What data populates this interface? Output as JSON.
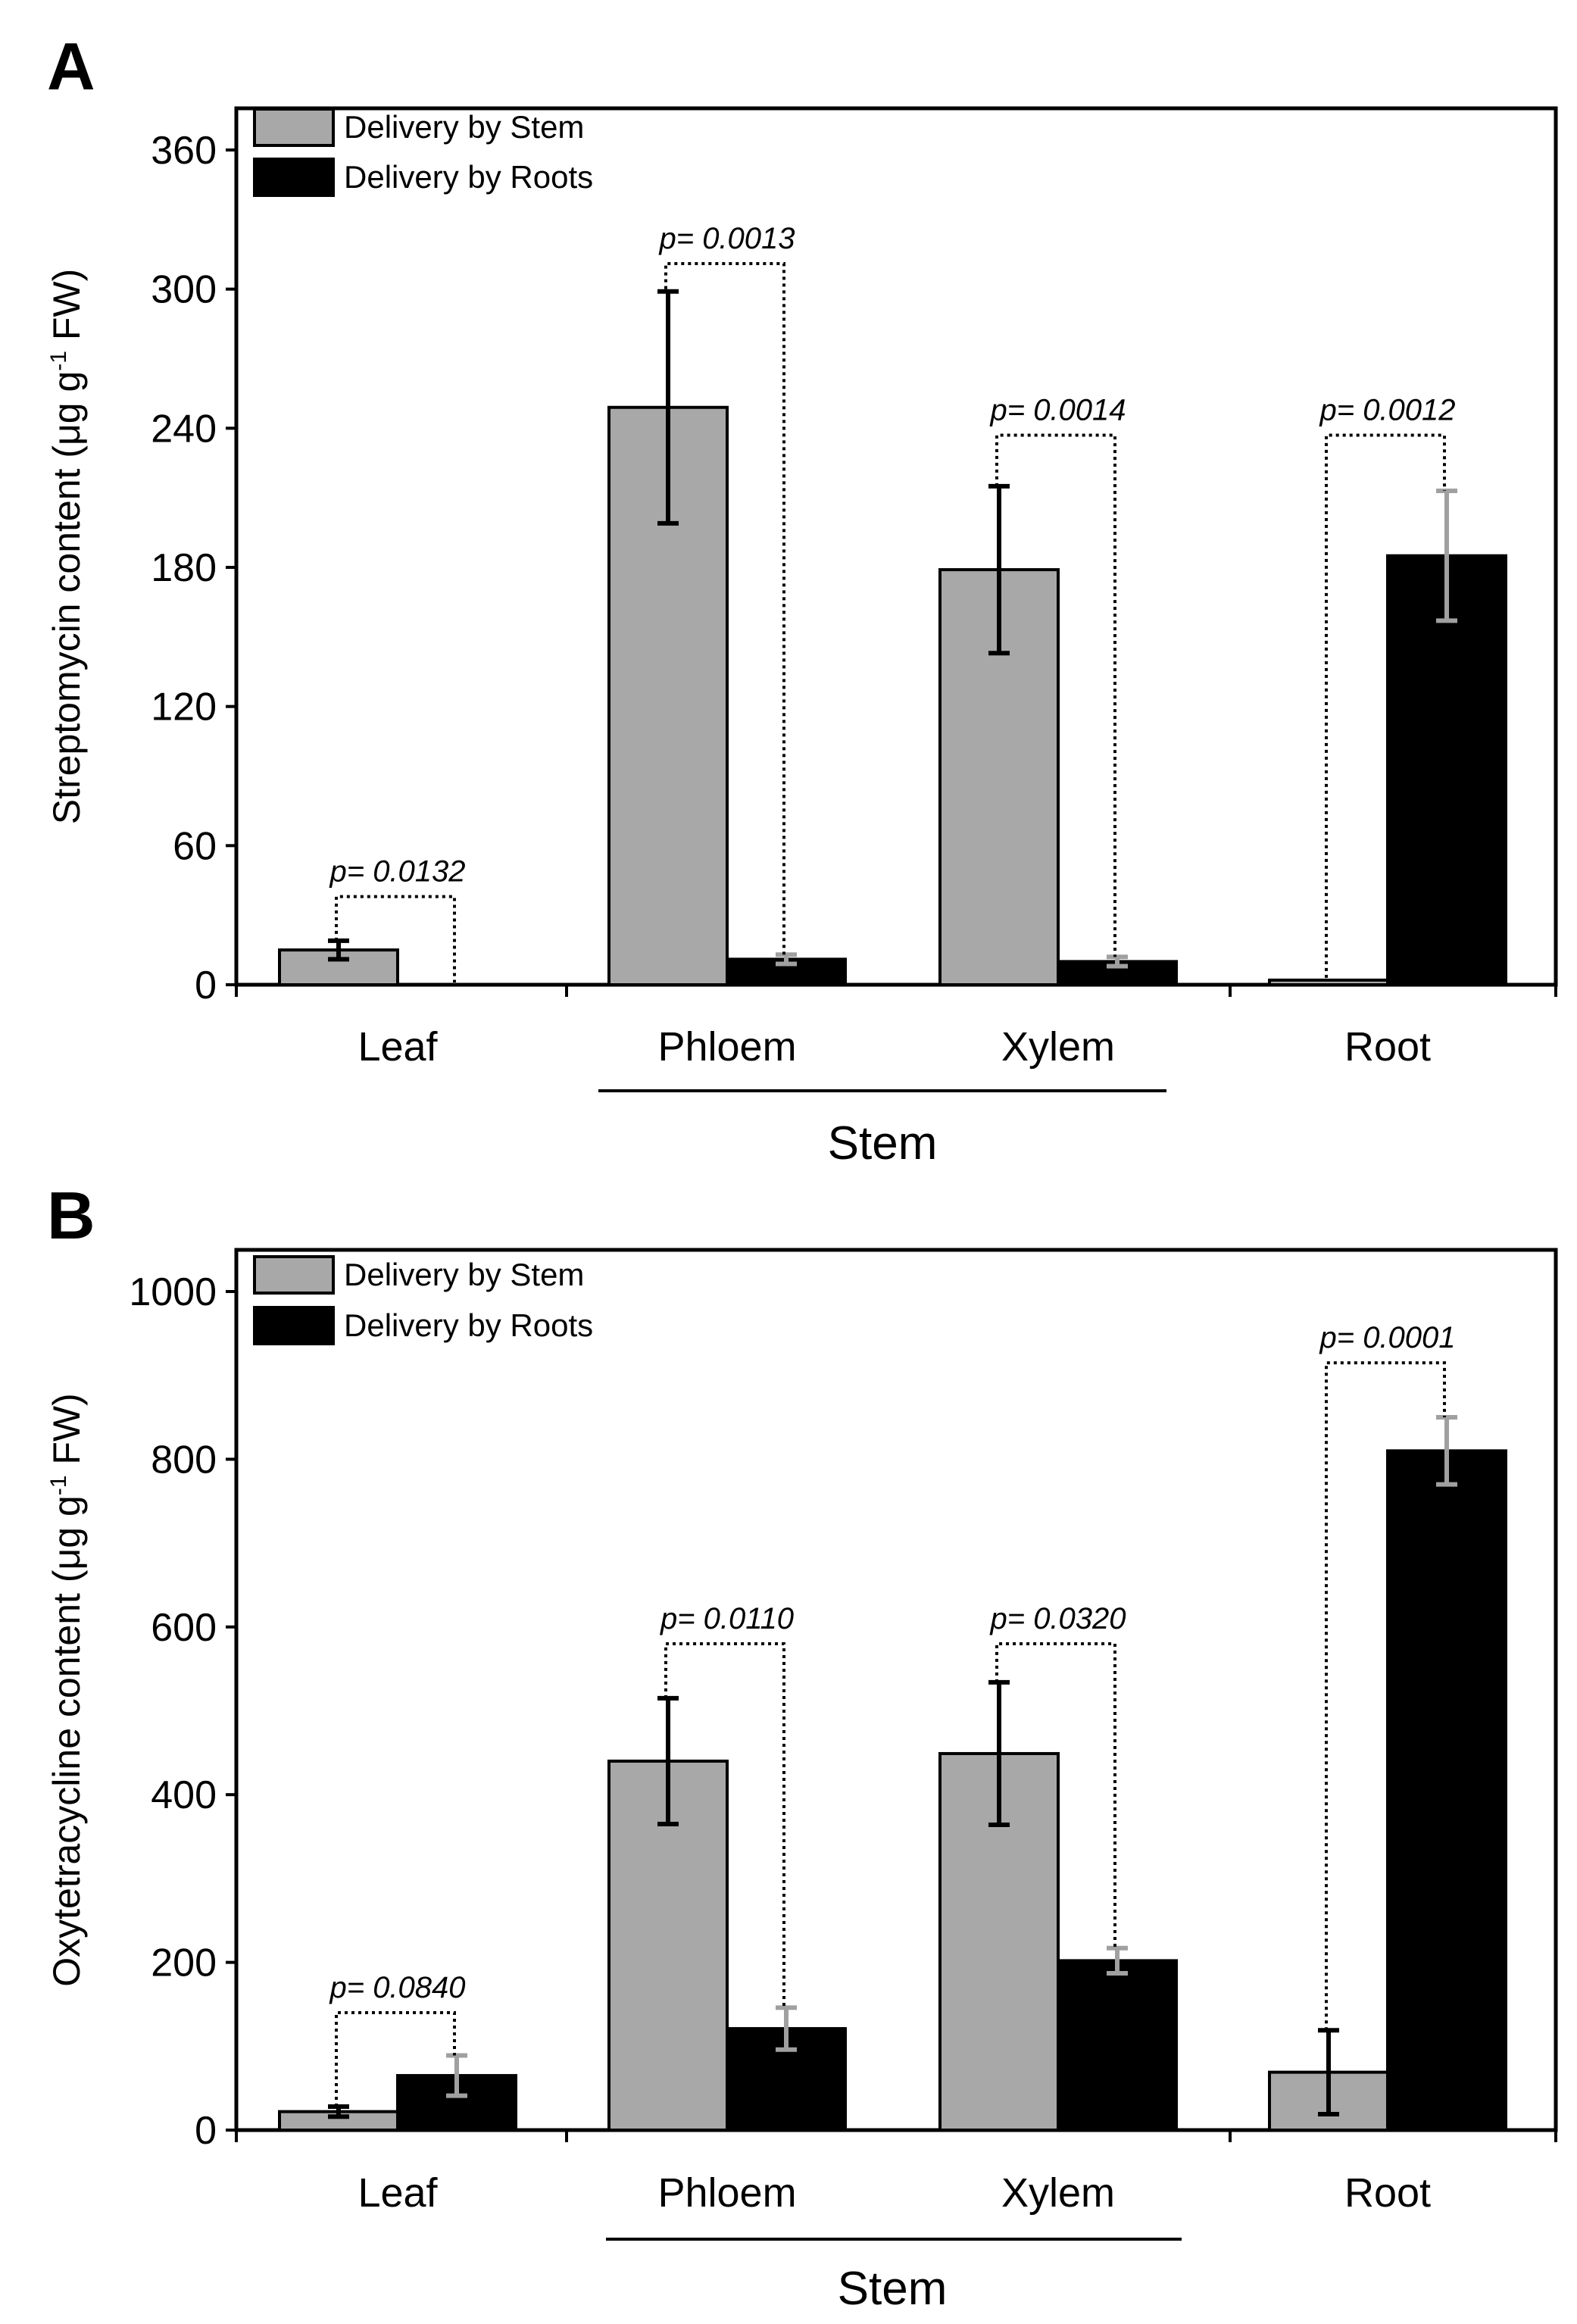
{
  "chart_data": [
    {
      "panel": "A",
      "type": "bar",
      "ylabel_parts": [
        "Streptomycin content (μg g",
        "-1",
        " FW)"
      ],
      "ylim": [
        0,
        360
      ],
      "yticks": [
        0,
        60,
        120,
        180,
        240,
        300,
        360
      ],
      "categories": [
        "Leaf",
        "Phloem",
        "Xylem",
        "Root"
      ],
      "group_label": "Stem",
      "group_categories": [
        "Phloem",
        "Xylem"
      ],
      "series": [
        {
          "name": "Delivery by Stem",
          "color": "#a8a8a8",
          "errcolor": "#000000",
          "values": [
            15,
            249,
            179,
            2
          ],
          "errors": [
            4,
            50,
            36,
            0
          ]
        },
        {
          "name": "Delivery by Roots",
          "color": "#000000",
          "errcolor": "#a0a0a0",
          "values": [
            0,
            11,
            10,
            185
          ],
          "errors": [
            0,
            2,
            2,
            28
          ]
        }
      ],
      "pvalues": [
        {
          "category": "Leaf",
          "label": "p= 0.0132",
          "bracket_top": 38,
          "left_end": 19,
          "right_end": 1
        },
        {
          "category": "Phloem",
          "label": "p= 0.0013",
          "bracket_top": 311,
          "left_end": 300,
          "right_end": 13
        },
        {
          "category": "Xylem",
          "label": "p= 0.0014",
          "bracket_top": 237,
          "left_end": 215,
          "right_end": 12
        },
        {
          "category": "Root",
          "label": "p= 0.0012",
          "bracket_top": 237,
          "left_end": 3,
          "right_end": 213
        }
      ]
    },
    {
      "panel": "B",
      "type": "bar",
      "ylabel_parts": [
        "Oxytetracycline content (μg g",
        "-1",
        " FW)"
      ],
      "ylim": [
        0,
        1000
      ],
      "yticks": [
        0,
        200,
        400,
        600,
        800,
        1000
      ],
      "categories": [
        "Leaf",
        "Phloem",
        "Xylem",
        "Root"
      ],
      "group_label": "Stem",
      "group_categories": [
        "Phloem",
        "Xylem"
      ],
      "series": [
        {
          "name": "Delivery by Stem",
          "color": "#a8a8a8",
          "errcolor": "#000000",
          "values": [
            22,
            440,
            449,
            69
          ],
          "errors": [
            6,
            75,
            85,
            50
          ]
        },
        {
          "name": "Delivery by Roots",
          "color": "#000000",
          "errcolor": "#a0a0a0",
          "values": [
            65,
            121,
            202,
            810
          ],
          "errors": [
            24,
            25,
            15,
            40
          ]
        }
      ],
      "pvalues": [
        {
          "category": "Leaf",
          "label": "p= 0.0840",
          "bracket_top": 140,
          "left_end": 28,
          "right_end": 89
        },
        {
          "category": "Phloem",
          "label": "p= 0.0110",
          "bracket_top": 580,
          "left_end": 515,
          "right_end": 146
        },
        {
          "category": "Xylem",
          "label": "p= 0.0320",
          "bracket_top": 580,
          "left_end": 534,
          "right_end": 217
        },
        {
          "category": "Root",
          "label": "p= 0.0001",
          "bracket_top": 915,
          "left_end": 119,
          "right_end": 850
        }
      ]
    }
  ]
}
